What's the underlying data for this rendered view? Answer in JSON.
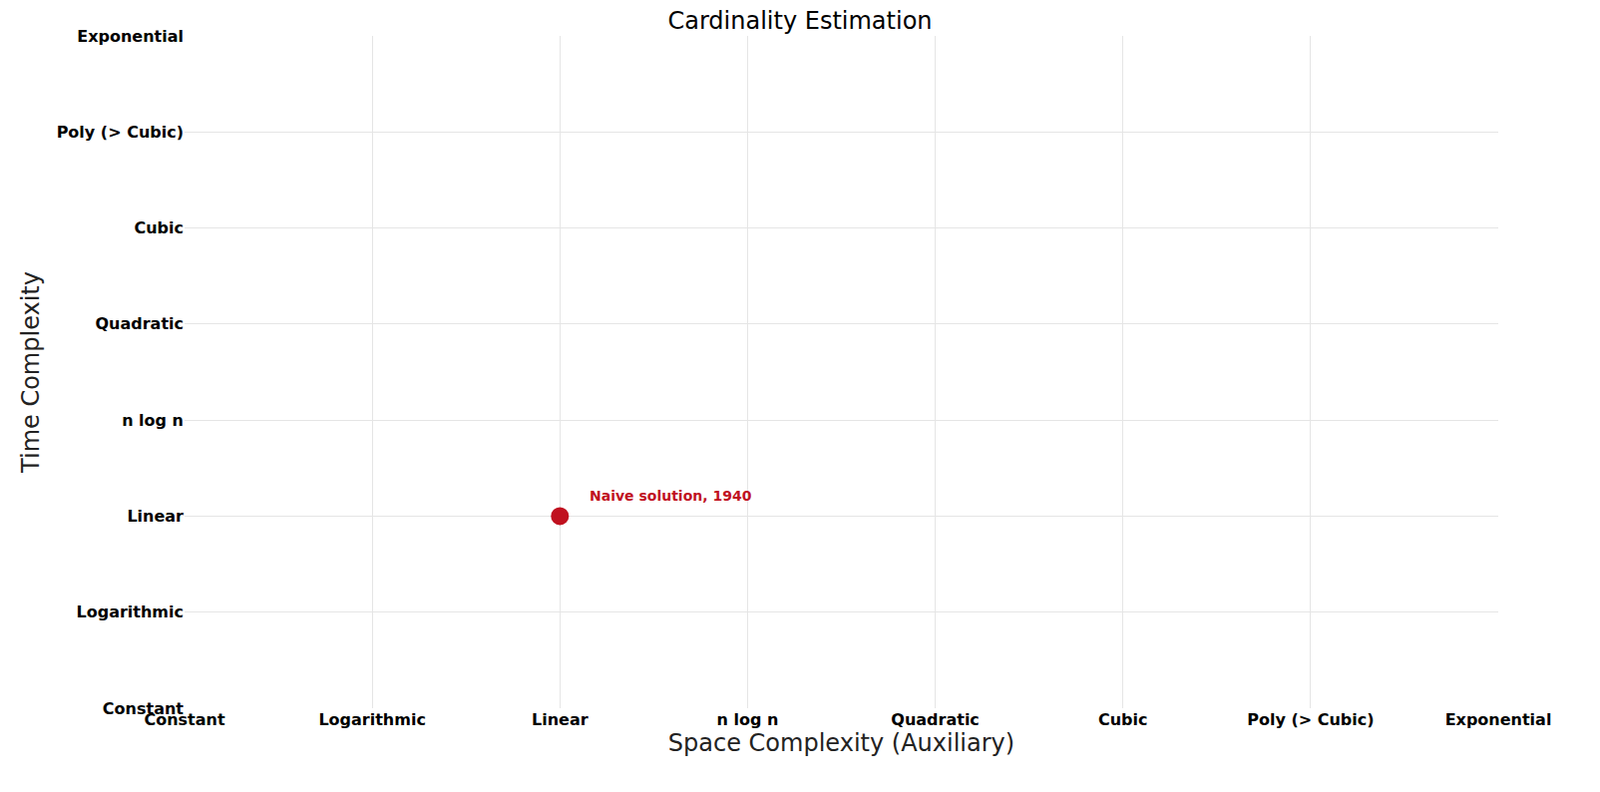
{
  "chart_data": {
    "type": "scatter",
    "title": "Cardinality Estimation",
    "x_label": "Space Complexity (Auxiliary)",
    "y_label": "Time Complexity",
    "x": [
      2
    ],
    "y": [
      2
    ],
    "color": "#c0111f",
    "marker": "circle",
    "xlim": [
      0,
      7
    ],
    "ylim": [
      0,
      7
    ],
    "xticks": [
      {
        "value": 0,
        "label": "Constant"
      },
      {
        "value": 1,
        "label": "Logarithmic"
      },
      {
        "value": 2,
        "label": "Linear"
      },
      {
        "value": 3,
        "label": "n log n"
      },
      {
        "value": 4,
        "label": "Quadratic"
      },
      {
        "value": 5,
        "label": "Cubic"
      },
      {
        "value": 6,
        "label": "Poly (> Cubic)"
      },
      {
        "value": 7,
        "label": "Exponential"
      }
    ],
    "yticks": [
      {
        "value": 0,
        "label": "Constant"
      },
      {
        "value": 1,
        "label": "Logarithmic"
      },
      {
        "value": 2,
        "label": "Linear"
      },
      {
        "value": 3,
        "label": "n log n"
      },
      {
        "value": 4,
        "label": "Quadratic"
      },
      {
        "value": 5,
        "label": "Cubic"
      },
      {
        "value": 6,
        "label": "Poly (> Cubic)"
      },
      {
        "value": 7,
        "label": "Exponential"
      }
    ],
    "annotations": [
      {
        "text": "Naive solution, 1940",
        "x": 2,
        "y": 2
      }
    ],
    "grid": true
  }
}
